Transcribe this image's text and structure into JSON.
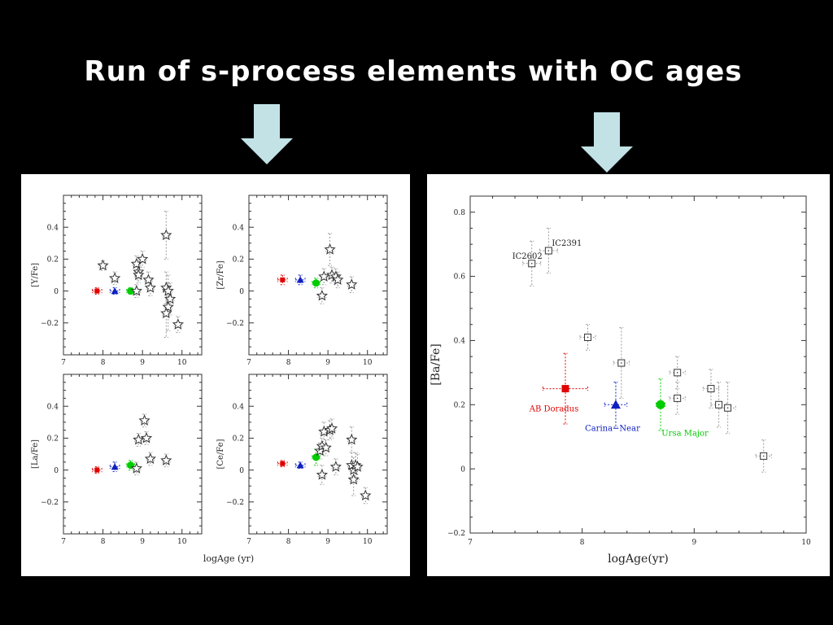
{
  "title": "Run of s-process elements with OC ages",
  "arrows": [
    "down-arrow-left",
    "down-arrow-right"
  ],
  "colors": {
    "background": "#000000",
    "arrow": "#c2e2e6",
    "red": "#e00000",
    "blue": "#1020c0",
    "green": "#00cc00",
    "marker_edge": "#333333",
    "error_bar": "#9a9a9a"
  },
  "left_figure": {
    "xlabel": "logAge (yr)",
    "chart_data": [
      {
        "type": "scatter",
        "ylabel": "[Y/Fe]",
        "xlim": [
          7,
          10.5
        ],
        "ylim": [
          -0.4,
          0.6
        ],
        "xticks": [
          "7",
          "8",
          "9",
          "10"
        ],
        "yticks": [
          "−0.2",
          "0",
          "0.2",
          "0.4"
        ],
        "ytick_values": [
          -0.2,
          0,
          0.2,
          0.4
        ],
        "series": [
          {
            "marker": "square",
            "color": "red",
            "points": [
              {
                "x": 7.85,
                "y": 0.0,
                "ex": 0.12,
                "ey": 0.02
              }
            ]
          },
          {
            "marker": "triangle",
            "color": "blue",
            "points": [
              {
                "x": 8.3,
                "y": 0.0,
                "ex": 0.12,
                "ey": 0.02
              }
            ]
          },
          {
            "marker": "circle",
            "color": "green",
            "points": [
              {
                "x": 8.7,
                "y": 0.0,
                "ex": 0.1,
                "ey": 0.02
              }
            ]
          },
          {
            "marker": "star",
            "color": "none",
            "points": [
              {
                "x": 8.0,
                "y": 0.16,
                "ex": 0.1,
                "ey": 0.03
              },
              {
                "x": 8.3,
                "y": 0.08,
                "ex": 0.1,
                "ey": 0.04
              },
              {
                "x": 8.85,
                "y": 0.17,
                "ex": 0.1,
                "ey": 0.05
              },
              {
                "x": 8.9,
                "y": 0.12,
                "ex": 0.1,
                "ey": 0.05
              },
              {
                "x": 8.9,
                "y": 0.1,
                "ex": 0.1,
                "ey": 0.05
              },
              {
                "x": 9.0,
                "y": 0.2,
                "ex": 0.1,
                "ey": 0.05
              },
              {
                "x": 8.85,
                "y": 0.0,
                "ex": 0.1,
                "ey": 0.04
              },
              {
                "x": 9.15,
                "y": 0.07,
                "ex": 0.1,
                "ey": 0.05
              },
              {
                "x": 9.2,
                "y": 0.02,
                "ex": 0.1,
                "ey": 0.05
              },
              {
                "x": 9.6,
                "y": 0.35,
                "ex": 0.1,
                "ey": 0.15
              },
              {
                "x": 9.6,
                "y": 0.02,
                "ex": 0.1,
                "ey": 0.1
              },
              {
                "x": 9.65,
                "y": 0.0,
                "ex": 0.1,
                "ey": 0.1
              },
              {
                "x": 9.7,
                "y": -0.05,
                "ex": 0.1,
                "ey": 0.1
              },
              {
                "x": 9.65,
                "y": -0.1,
                "ex": 0.1,
                "ey": 0.15
              },
              {
                "x": 9.6,
                "y": -0.14,
                "ex": 0.1,
                "ey": 0.15
              },
              {
                "x": 9.9,
                "y": -0.21,
                "ex": 0.1,
                "ey": 0.05
              }
            ]
          }
        ]
      },
      {
        "type": "scatter",
        "ylabel": "[Zr/Fe]",
        "xlim": [
          7,
          10.5
        ],
        "ylim": [
          -0.4,
          0.6
        ],
        "xticks": [
          "7",
          "8",
          "9",
          "10"
        ],
        "yticks": [
          "−0.2",
          "0",
          "0.2",
          "0.4"
        ],
        "ytick_values": [
          -0.2,
          0,
          0.2,
          0.4
        ],
        "series": [
          {
            "marker": "square",
            "color": "red",
            "points": [
              {
                "x": 7.85,
                "y": 0.07,
                "ex": 0.12,
                "ey": 0.03
              }
            ]
          },
          {
            "marker": "triangle",
            "color": "blue",
            "points": [
              {
                "x": 8.3,
                "y": 0.07,
                "ex": 0.12,
                "ey": 0.03
              }
            ]
          },
          {
            "marker": "circle",
            "color": "green",
            "points": [
              {
                "x": 8.7,
                "y": 0.05,
                "ex": 0.1,
                "ey": 0.03
              }
            ]
          },
          {
            "marker": "star",
            "color": "none",
            "points": [
              {
                "x": 8.85,
                "y": -0.03,
                "ex": 0.1,
                "ey": 0.05
              },
              {
                "x": 8.9,
                "y": 0.09,
                "ex": 0.1,
                "ey": 0.05
              },
              {
                "x": 9.05,
                "y": 0.26,
                "ex": 0.1,
                "ey": 0.1
              },
              {
                "x": 9.1,
                "y": 0.1,
                "ex": 0.1,
                "ey": 0.05
              },
              {
                "x": 9.2,
                "y": 0.09,
                "ex": 0.1,
                "ey": 0.05
              },
              {
                "x": 9.25,
                "y": 0.07,
                "ex": 0.1,
                "ey": 0.05
              },
              {
                "x": 9.6,
                "y": 0.04,
                "ex": 0.1,
                "ey": 0.05
              }
            ]
          }
        ]
      },
      {
        "type": "scatter",
        "ylabel": "[La/Fe]",
        "xlim": [
          7,
          10.5
        ],
        "ylim": [
          -0.4,
          0.6
        ],
        "xticks": [
          "7",
          "8",
          "9",
          "10"
        ],
        "yticks": [
          "−0.2",
          "0",
          "0.2",
          "0.4"
        ],
        "ytick_values": [
          -0.2,
          0,
          0.2,
          0.4
        ],
        "series": [
          {
            "marker": "square",
            "color": "red",
            "points": [
              {
                "x": 7.85,
                "y": 0.0,
                "ex": 0.12,
                "ey": 0.02
              }
            ]
          },
          {
            "marker": "triangle",
            "color": "blue",
            "points": [
              {
                "x": 8.3,
                "y": 0.02,
                "ex": 0.12,
                "ey": 0.03
              }
            ]
          },
          {
            "marker": "circle",
            "color": "green",
            "points": [
              {
                "x": 8.7,
                "y": 0.03,
                "ex": 0.1,
                "ey": 0.03
              }
            ]
          },
          {
            "marker": "star",
            "color": "none",
            "points": [
              {
                "x": 8.85,
                "y": 0.01,
                "ex": 0.1,
                "ey": 0.04
              },
              {
                "x": 8.9,
                "y": 0.19,
                "ex": 0.1,
                "ey": 0.04
              },
              {
                "x": 9.05,
                "y": 0.31,
                "ex": 0.1,
                "ey": 0.04
              },
              {
                "x": 9.1,
                "y": 0.2,
                "ex": 0.1,
                "ey": 0.04
              },
              {
                "x": 9.2,
                "y": 0.07,
                "ex": 0.1,
                "ey": 0.04
              },
              {
                "x": 9.6,
                "y": 0.06,
                "ex": 0.1,
                "ey": 0.04
              }
            ]
          }
        ]
      },
      {
        "type": "scatter",
        "ylabel": "[Ce/Fe]",
        "xlim": [
          7,
          10.5
        ],
        "ylim": [
          -0.4,
          0.6
        ],
        "xticks": [
          "7",
          "8",
          "9",
          "10"
        ],
        "yticks": [
          "−0.2",
          "0",
          "0.2",
          "0.4"
        ],
        "ytick_values": [
          -0.2,
          0,
          0.2,
          0.4
        ],
        "series": [
          {
            "marker": "square",
            "color": "red",
            "points": [
              {
                "x": 7.85,
                "y": 0.04,
                "ex": 0.12,
                "ey": 0.02
              }
            ]
          },
          {
            "marker": "triangle",
            "color": "blue",
            "points": [
              {
                "x": 8.3,
                "y": 0.03,
                "ex": 0.12,
                "ey": 0.02
              }
            ]
          },
          {
            "marker": "circle",
            "color": "green",
            "points": [
              {
                "x": 8.7,
                "y": 0.08,
                "ex": 0.1,
                "ey": 0.05
              }
            ]
          },
          {
            "marker": "star",
            "color": "none",
            "points": [
              {
                "x": 8.85,
                "y": -0.03,
                "ex": 0.1,
                "ey": 0.06
              },
              {
                "x": 8.8,
                "y": 0.12,
                "ex": 0.1,
                "ey": 0.05
              },
              {
                "x": 8.85,
                "y": 0.15,
                "ex": 0.1,
                "ey": 0.05
              },
              {
                "x": 8.9,
                "y": 0.24,
                "ex": 0.1,
                "ey": 0.06
              },
              {
                "x": 8.95,
                "y": 0.14,
                "ex": 0.1,
                "ey": 0.05
              },
              {
                "x": 9.05,
                "y": 0.25,
                "ex": 0.1,
                "ey": 0.06
              },
              {
                "x": 9.1,
                "y": 0.26,
                "ex": 0.1,
                "ey": 0.06
              },
              {
                "x": 9.2,
                "y": 0.02,
                "ex": 0.1,
                "ey": 0.05
              },
              {
                "x": 9.6,
                "y": 0.19,
                "ex": 0.1,
                "ey": 0.08
              },
              {
                "x": 9.6,
                "y": 0.03,
                "ex": 0.1,
                "ey": 0.08
              },
              {
                "x": 9.65,
                "y": 0.0,
                "ex": 0.1,
                "ey": 0.08
              },
              {
                "x": 9.7,
                "y": 0.03,
                "ex": 0.1,
                "ey": 0.08
              },
              {
                "x": 9.65,
                "y": -0.06,
                "ex": 0.1,
                "ey": 0.1
              },
              {
                "x": 9.75,
                "y": 0.02,
                "ex": 0.1,
                "ey": 0.08
              },
              {
                "x": 9.95,
                "y": -0.16,
                "ex": 0.1,
                "ey": 0.05
              }
            ]
          }
        ]
      }
    ]
  },
  "right_figure": {
    "chart_data": {
      "type": "scatter",
      "xlabel": "logAge(yr)",
      "ylabel": "[Ba/Fe]",
      "xlim": [
        7,
        10
      ],
      "ylim": [
        -0.2,
        0.85
      ],
      "xticks": [
        "7",
        "8",
        "9",
        "10"
      ],
      "yticks": [
        "−0.2",
        "0",
        "0.2",
        "0.4",
        "0.6",
        "0.8"
      ],
      "ytick_values": [
        -0.2,
        0,
        0.2,
        0.4,
        0.6,
        0.8
      ],
      "series": [
        {
          "name": "AB Doradus",
          "marker": "square",
          "color": "red",
          "points": [
            {
              "x": 7.85,
              "y": 0.25,
              "ex": 0.2,
              "ey": 0.11
            }
          ]
        },
        {
          "name": "Carina−Near",
          "marker": "triangle",
          "color": "blue",
          "points": [
            {
              "x": 8.3,
              "y": 0.2,
              "ex": 0.1,
              "ey": 0.07
            }
          ]
        },
        {
          "name": "Ursa Major",
          "marker": "circle",
          "color": "green",
          "points": [
            {
              "x": 8.7,
              "y": 0.2,
              "ex": 0.04,
              "ey": 0.08
            }
          ]
        },
        {
          "marker": "open-square",
          "color": "none",
          "points": [
            {
              "x": 7.55,
              "y": 0.64,
              "ex": 0.08,
              "ey": 0.07,
              "label": "IC2602"
            },
            {
              "x": 7.7,
              "y": 0.68,
              "ex": 0.08,
              "ey": 0.07,
              "label": "IC2391"
            },
            {
              "x": 8.05,
              "y": 0.41,
              "ex": 0.07,
              "ey": 0.04
            },
            {
              "x": 8.35,
              "y": 0.33,
              "ex": 0.07,
              "ey": 0.11
            },
            {
              "x": 8.85,
              "y": 0.3,
              "ex": 0.07,
              "ey": 0.05
            },
            {
              "x": 8.85,
              "y": 0.22,
              "ex": 0.07,
              "ey": 0.05
            },
            {
              "x": 9.15,
              "y": 0.25,
              "ex": 0.07,
              "ey": 0.06
            },
            {
              "x": 9.22,
              "y": 0.2,
              "ex": 0.07,
              "ey": 0.07
            },
            {
              "x": 9.3,
              "y": 0.19,
              "ex": 0.07,
              "ey": 0.08
            },
            {
              "x": 9.62,
              "y": 0.04,
              "ex": 0.07,
              "ey": 0.05
            }
          ]
        }
      ]
    }
  }
}
